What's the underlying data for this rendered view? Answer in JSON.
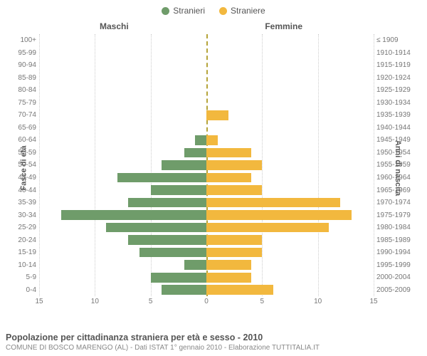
{
  "legend": {
    "male": {
      "label": "Stranieri",
      "color": "#6f9c6a"
    },
    "female": {
      "label": "Straniere",
      "color": "#f2b83e"
    }
  },
  "col_titles": {
    "male": "Maschi",
    "female": "Femmine"
  },
  "ylabels": {
    "left": "Fasce di età",
    "right": "Anni di nascita"
  },
  "chart": {
    "type": "population-pyramid",
    "xmax": 15,
    "xticks": [
      15,
      10,
      5,
      0,
      5,
      10,
      15
    ],
    "grid_color": "#cccccc",
    "center_color": "#b5a43a",
    "background_color": "#ffffff",
    "bar_colors": {
      "male": "#6f9c6a",
      "female": "#f2b83e"
    },
    "label_fontsize": 10,
    "rows": [
      {
        "age": "100+",
        "birth": "≤ 1909",
        "m": 0,
        "f": 0
      },
      {
        "age": "95-99",
        "birth": "1910-1914",
        "m": 0,
        "f": 0
      },
      {
        "age": "90-94",
        "birth": "1915-1919",
        "m": 0,
        "f": 0
      },
      {
        "age": "85-89",
        "birth": "1920-1924",
        "m": 0,
        "f": 0
      },
      {
        "age": "80-84",
        "birth": "1925-1929",
        "m": 0,
        "f": 0
      },
      {
        "age": "75-79",
        "birth": "1930-1934",
        "m": 0,
        "f": 0
      },
      {
        "age": "70-74",
        "birth": "1935-1939",
        "m": 0,
        "f": 2
      },
      {
        "age": "65-69",
        "birth": "1940-1944",
        "m": 0,
        "f": 0
      },
      {
        "age": "60-64",
        "birth": "1945-1949",
        "m": 1,
        "f": 1
      },
      {
        "age": "55-59",
        "birth": "1950-1954",
        "m": 2,
        "f": 4
      },
      {
        "age": "50-54",
        "birth": "1955-1959",
        "m": 4,
        "f": 5
      },
      {
        "age": "45-49",
        "birth": "1960-1964",
        "m": 8,
        "f": 4
      },
      {
        "age": "40-44",
        "birth": "1965-1969",
        "m": 5,
        "f": 5
      },
      {
        "age": "35-39",
        "birth": "1970-1974",
        "m": 7,
        "f": 12
      },
      {
        "age": "30-34",
        "birth": "1975-1979",
        "m": 13,
        "f": 13
      },
      {
        "age": "25-29",
        "birth": "1980-1984",
        "m": 9,
        "f": 11
      },
      {
        "age": "20-24",
        "birth": "1985-1989",
        "m": 7,
        "f": 5
      },
      {
        "age": "15-19",
        "birth": "1990-1994",
        "m": 6,
        "f": 5
      },
      {
        "age": "10-14",
        "birth": "1995-1999",
        "m": 2,
        "f": 4
      },
      {
        "age": "5-9",
        "birth": "2000-2004",
        "m": 5,
        "f": 4
      },
      {
        "age": "0-4",
        "birth": "2005-2009",
        "m": 4,
        "f": 6
      }
    ]
  },
  "footer": {
    "title": "Popolazione per cittadinanza straniera per età e sesso - 2010",
    "sub": "COMUNE DI BOSCO MARENGO (AL) - Dati ISTAT 1° gennaio 2010 - Elaborazione TUTTITALIA.IT"
  }
}
